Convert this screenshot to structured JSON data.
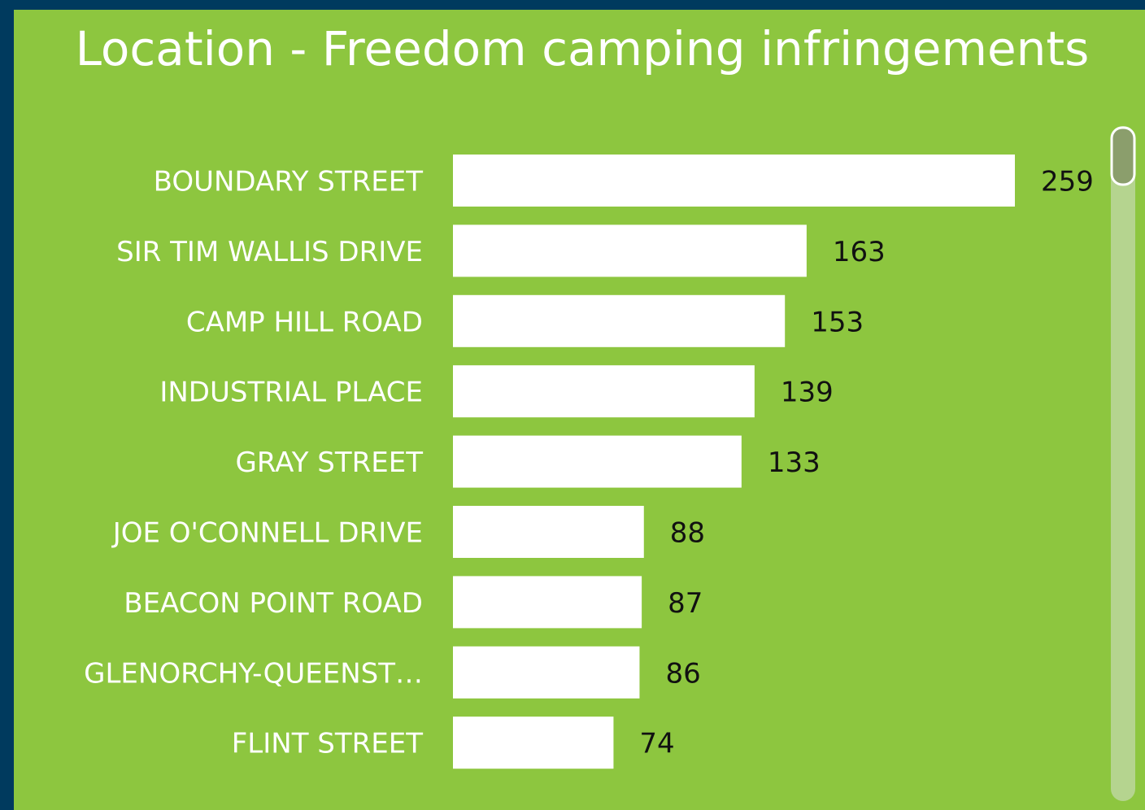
{
  "chart_data": {
    "type": "bar",
    "orientation": "horizontal",
    "title": "Location - Freedom camping infringements",
    "categories": [
      "BOUNDARY STREET",
      "SIR TIM WALLIS DRIVE",
      "CAMP HILL ROAD",
      "INDUSTRIAL PLACE",
      "GRAY STREET",
      "JOE O'CONNELL DRIVE",
      "BEACON POINT ROAD",
      "GLENORCHY-QUEENST…",
      "FLINT STREET"
    ],
    "values": [
      259,
      163,
      153,
      139,
      133,
      88,
      87,
      86,
      74
    ],
    "color": "#ffffff"
  }
}
